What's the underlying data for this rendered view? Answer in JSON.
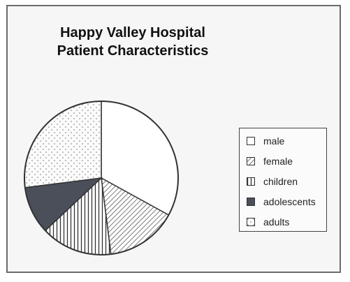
{
  "chart_data": {
    "type": "pie",
    "title": "Happy Valley Hospital",
    "subtitle": "Patient Characteristics",
    "categories": [
      "male",
      "female",
      "children",
      "adolescents",
      "adults"
    ],
    "values": [
      33,
      15,
      15,
      10,
      27
    ],
    "legend_position": "right",
    "start": "12 o'clock, clockwise"
  },
  "legend": {
    "items": [
      {
        "label": "male",
        "pattern": "blank-icon"
      },
      {
        "label": "female",
        "pattern": "diagonal-hatch-icon"
      },
      {
        "label": "children",
        "pattern": "vertical-stripes-icon"
      },
      {
        "label": "adolescents",
        "pattern": "solid-dark-icon"
      },
      {
        "label": "adults",
        "pattern": "dots-icon"
      }
    ]
  },
  "colors": {
    "frame": "#6b6b6b",
    "outline": "#333333",
    "adolescents_fill": "#4a4f5a",
    "background": "#f6f6f6"
  }
}
